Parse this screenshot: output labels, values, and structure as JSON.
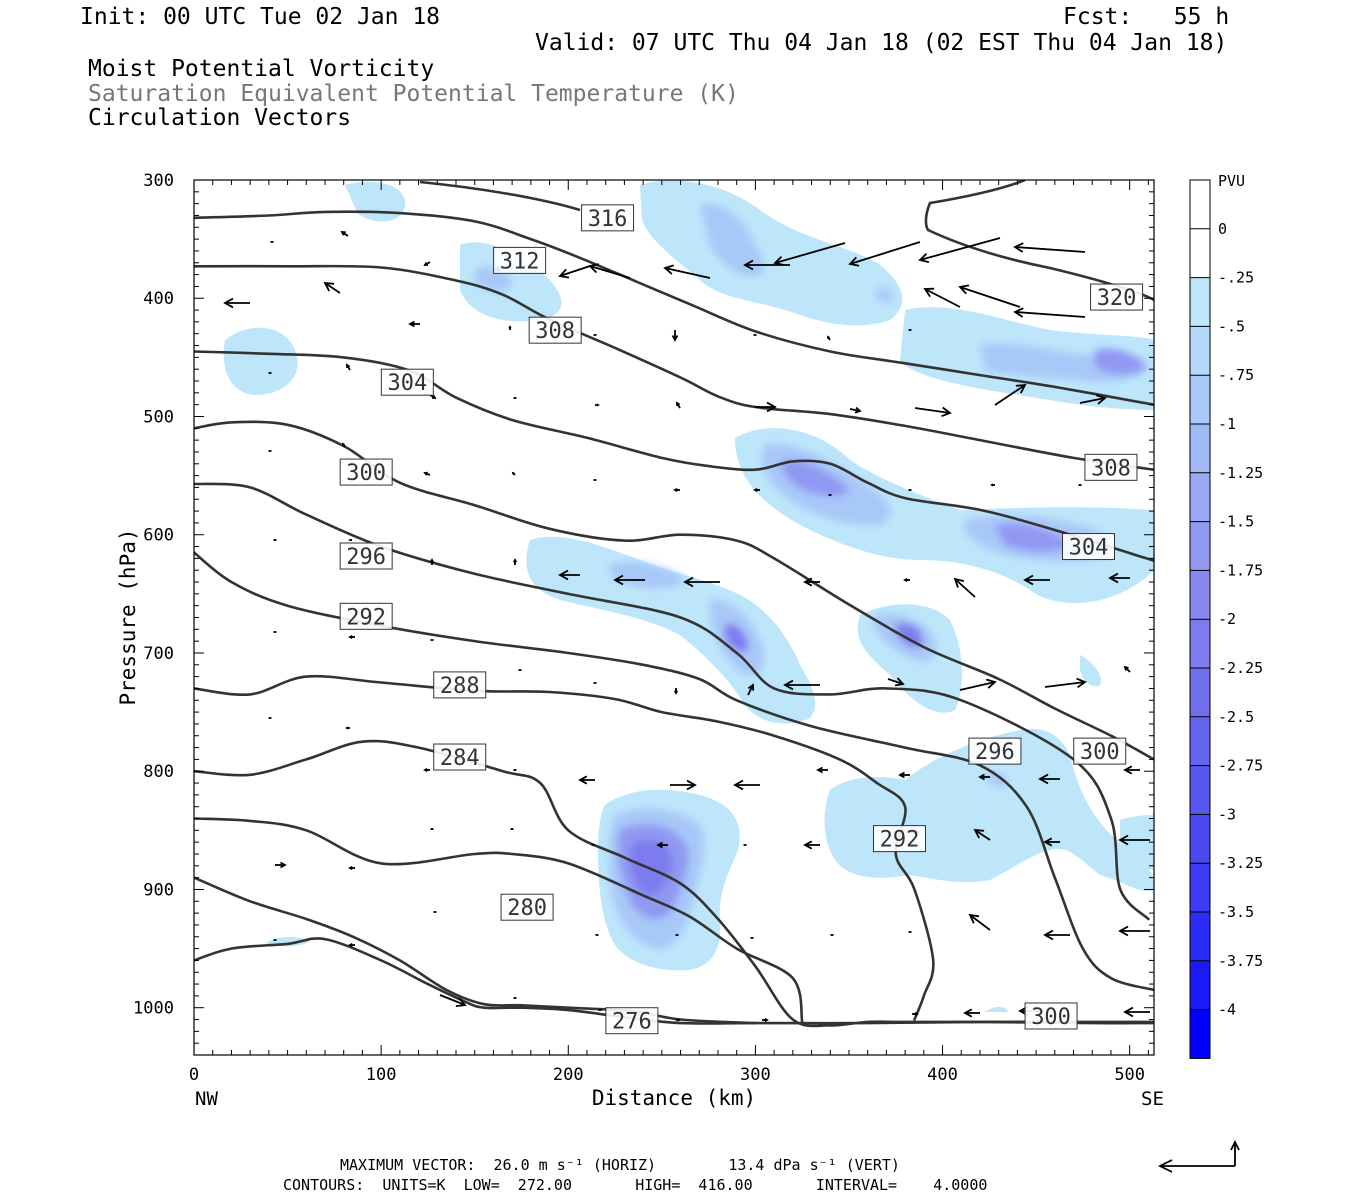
{
  "header": {
    "init": "Init: 00 UTC Tue 02 Jan 18",
    "fcst": "Fcst:   55 h",
    "valid": "Valid: 07 UTC Thu 04 Jan 18 (02 EST Thu 04 Jan 18)",
    "field1": "Moist Potential Vorticity",
    "field2": "Saturation Equivalent Potential Temperature (K)",
    "field3": "Circulation Vectors"
  },
  "footer": {
    "line1": "MAXIMUM VECTOR:  26.0 m s⁻¹ (HORIZ)        13.4 dPa s⁻¹ (VERT)",
    "line2": "CONTOURS:  UNITS=K  LOW=  272.00       HIGH=  416.00       INTERVAL=    4.0000"
  },
  "chart_data": {
    "type": "contour",
    "xlabel": "Distance (km)",
    "ylabel": "Pressure (hPa)",
    "xlim": [
      0,
      513
    ],
    "ylim": [
      1040,
      300
    ],
    "xticks": [
      0,
      100,
      200,
      300,
      400,
      500
    ],
    "yticks": [
      300,
      400,
      500,
      600,
      700,
      800,
      900,
      1000
    ],
    "x_end_labels": {
      "left": "NW",
      "right": "SE"
    },
    "colorbar": {
      "title": "PVU",
      "levels": [
        "0",
        "-.25",
        "-.5",
        "-.75",
        "-1",
        "-1.25",
        "-1.5",
        "-1.75",
        "-2",
        "-2.25",
        "-2.5",
        "-2.75",
        "-3",
        "-3.25",
        "-3.5",
        "-3.75",
        "-4"
      ],
      "colors": [
        "#ffffff",
        "#ffffff",
        "#bde6fa",
        "#b3d8fa",
        "#a8c8f8",
        "#a0b8f6",
        "#98a8f4",
        "#9098f2",
        "#8888f0",
        "#7c7cee",
        "#7070ec",
        "#6464ee",
        "#5858f0",
        "#4a4af2",
        "#3c3cf4",
        "#2c2cf8",
        "#1a1afa",
        "#0000ff"
      ]
    },
    "contour_labels": [
      {
        "text": "316",
        "x": 221,
        "p": 332
      },
      {
        "text": "312",
        "x": 174,
        "p": 368
      },
      {
        "text": "308",
        "x": 193,
        "p": 427
      },
      {
        "text": "304",
        "x": 114,
        "p": 471
      },
      {
        "text": "320",
        "x": 493,
        "p": 399
      },
      {
        "text": "308",
        "x": 490,
        "p": 543
      },
      {
        "text": "300",
        "x": 92,
        "p": 547
      },
      {
        "text": "304",
        "x": 478,
        "p": 610
      },
      {
        "text": "296",
        "x": 92,
        "p": 618
      },
      {
        "text": "292",
        "x": 92,
        "p": 669
      },
      {
        "text": "288",
        "x": 142,
        "p": 727
      },
      {
        "text": "296",
        "x": 428,
        "p": 783
      },
      {
        "text": "300",
        "x": 484,
        "p": 783
      },
      {
        "text": "284",
        "x": 142,
        "p": 788
      },
      {
        "text": "292",
        "x": 377,
        "p": 857
      },
      {
        "text": "280",
        "x": 178,
        "p": 915
      },
      {
        "text": "276",
        "x": 234,
        "p": 1011
      },
      {
        "text": "300",
        "x": 458,
        "p": 1007
      }
    ],
    "contours": [
      [
        [
          0,
          332
        ],
        [
          40,
          330
        ],
        [
          70,
          327
        ],
        [
          110,
          328
        ],
        [
          150,
          335
        ],
        [
          180,
          350
        ],
        [
          205,
          365
        ],
        [
          235,
          385
        ],
        [
          265,
          405
        ],
        [
          300,
          428
        ],
        [
          340,
          445
        ],
        [
          380,
          455
        ],
        [
          420,
          465
        ],
        [
          460,
          475
        ],
        [
          513,
          490
        ]
      ],
      [
        [
          0,
          373
        ],
        [
          50,
          373
        ],
        [
          100,
          374
        ],
        [
          140,
          385
        ],
        [
          165,
          397
        ],
        [
          190,
          418
        ],
        [
          225,
          442
        ],
        [
          260,
          467
        ],
        [
          280,
          483
        ],
        [
          300,
          492
        ],
        [
          340,
          498
        ],
        [
          380,
          508
        ],
        [
          420,
          520
        ],
        [
          470,
          535
        ],
        [
          513,
          545
        ]
      ],
      [
        [
          0,
          445
        ],
        [
          40,
          447
        ],
        [
          80,
          450
        ],
        [
          115,
          461
        ],
        [
          140,
          484
        ],
        [
          170,
          503
        ],
        [
          210,
          518
        ],
        [
          250,
          535
        ],
        [
          275,
          542
        ],
        [
          300,
          545
        ],
        [
          320,
          538
        ],
        [
          340,
          540
        ],
        [
          360,
          556
        ],
        [
          380,
          569
        ],
        [
          420,
          579
        ],
        [
          460,
          596
        ],
        [
          513,
          622
        ]
      ],
      [
        [
          0,
          510
        ],
        [
          20,
          505
        ],
        [
          50,
          507
        ],
        [
          80,
          525
        ],
        [
          110,
          556
        ],
        [
          150,
          575
        ],
        [
          190,
          595
        ],
        [
          230,
          605
        ],
        [
          260,
          600
        ],
        [
          290,
          605
        ],
        [
          310,
          620
        ],
        [
          350,
          659
        ],
        [
          390,
          695
        ],
        [
          430,
          722
        ],
        [
          460,
          747
        ],
        [
          490,
          770
        ],
        [
          513,
          790
        ]
      ],
      [
        [
          0,
          557
        ],
        [
          30,
          560
        ],
        [
          60,
          583
        ],
        [
          100,
          610
        ],
        [
          150,
          633
        ],
        [
          200,
          650
        ],
        [
          260,
          670
        ],
        [
          290,
          700
        ],
        [
          310,
          730
        ],
        [
          340,
          735
        ],
        [
          370,
          730
        ],
        [
          410,
          740
        ],
        [
          470,
          790
        ],
        [
          490,
          840
        ],
        [
          495,
          900
        ],
        [
          510,
          925
        ]
      ],
      [
        [
          0,
          615
        ],
        [
          20,
          640
        ],
        [
          50,
          660
        ],
        [
          100,
          677
        ],
        [
          150,
          690
        ],
        [
          200,
          700
        ],
        [
          240,
          710
        ],
        [
          270,
          722
        ],
        [
          290,
          740
        ],
        [
          330,
          762
        ],
        [
          380,
          780
        ],
        [
          420,
          795
        ],
        [
          445,
          830
        ],
        [
          460,
          890
        ],
        [
          475,
          950
        ],
        [
          490,
          975
        ],
        [
          513,
          985
        ]
      ],
      [
        [
          0,
          730
        ],
        [
          30,
          735
        ],
        [
          60,
          720
        ],
        [
          100,
          725
        ],
        [
          150,
          732
        ],
        [
          190,
          733
        ],
        [
          225,
          739
        ],
        [
          250,
          750
        ],
        [
          280,
          758
        ],
        [
          310,
          770
        ],
        [
          345,
          790
        ],
        [
          365,
          810
        ],
        [
          380,
          830
        ],
        [
          375,
          870
        ],
        [
          385,
          900
        ],
        [
          395,
          960
        ],
        [
          390,
          990
        ],
        [
          385,
          1010
        ]
      ],
      [
        [
          0,
          800
        ],
        [
          30,
          803
        ],
        [
          60,
          790
        ],
        [
          90,
          775
        ],
        [
          120,
          780
        ],
        [
          165,
          800
        ],
        [
          185,
          810
        ],
        [
          200,
          850
        ],
        [
          230,
          873
        ],
        [
          260,
          895
        ],
        [
          280,
          925
        ],
        [
          300,
          965
        ],
        [
          320,
          1010
        ],
        [
          340,
          1015
        ],
        [
          360,
          1012
        ],
        [
          380,
          1012
        ],
        [
          420,
          1012
        ],
        [
          480,
          1013
        ],
        [
          513,
          1013
        ]
      ],
      [
        [
          0,
          840
        ],
        [
          30,
          842
        ],
        [
          60,
          850
        ],
        [
          100,
          878
        ],
        [
          150,
          870
        ],
        [
          170,
          870
        ],
        [
          200,
          878
        ],
        [
          240,
          905
        ],
        [
          265,
          923
        ],
        [
          290,
          950
        ],
        [
          320,
          975
        ],
        [
          325,
          1012
        ]
      ],
      [
        [
          0,
          890
        ],
        [
          30,
          910
        ],
        [
          60,
          925
        ],
        [
          85,
          940
        ],
        [
          110,
          960
        ],
        [
          135,
          985
        ],
        [
          155,
          997
        ],
        [
          175,
          998
        ],
        [
          200,
          1000
        ],
        [
          235,
          1003
        ],
        [
          260,
          1010
        ],
        [
          300,
          1013
        ]
      ],
      [
        [
          0,
          960
        ],
        [
          20,
          950
        ],
        [
          50,
          946
        ],
        [
          70,
          942
        ],
        [
          100,
          960
        ],
        [
          125,
          980
        ],
        [
          145,
          995
        ],
        [
          155,
          1000
        ],
        [
          175,
          1000
        ],
        [
          200,
          1002
        ],
        [
          230,
          1008
        ],
        [
          260,
          1013
        ],
        [
          300,
          1013
        ],
        [
          360,
          1013
        ],
        [
          420,
          1012
        ],
        [
          480,
          1012
        ],
        [
          513,
          1012
        ]
      ]
    ]
  }
}
